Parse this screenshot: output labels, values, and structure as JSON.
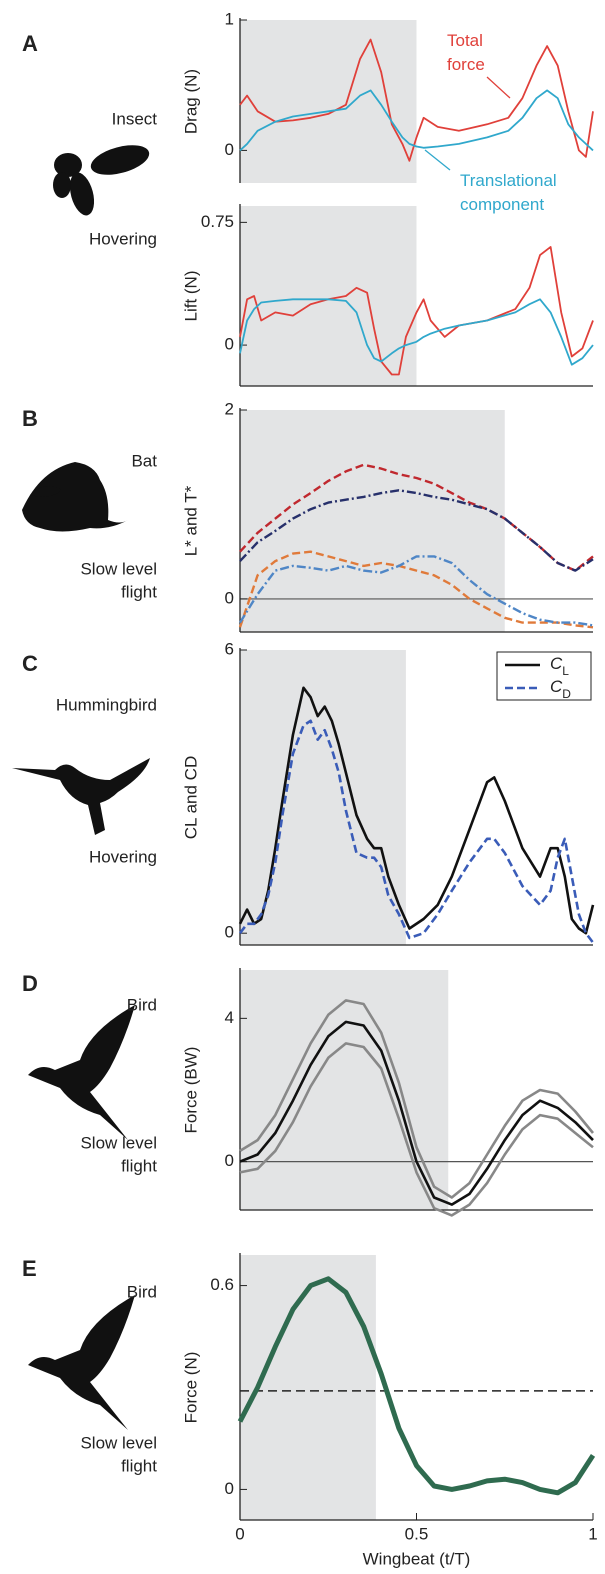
{
  "chart_data": [
    {
      "type": "line",
      "panel": "A",
      "animal": "Insect",
      "mode": [
        "Hovering"
      ],
      "ylabel": "Drag (N)",
      "xlim": [
        0,
        1
      ],
      "ylim": [
        -0.25,
        1
      ],
      "yticks": [
        0,
        1
      ],
      "shade": [
        0,
        0.5
      ],
      "x": [
        0,
        0.02,
        0.05,
        0.1,
        0.15,
        0.2,
        0.25,
        0.3,
        0.34,
        0.37,
        0.4,
        0.43,
        0.46,
        0.48,
        0.5,
        0.52,
        0.56,
        0.62,
        0.7,
        0.76,
        0.8,
        0.84,
        0.87,
        0.9,
        0.93,
        0.96,
        0.98,
        1
      ],
      "series": [
        {
          "name": "Total force",
          "color": "#e0403a",
          "style": "solid",
          "values": [
            0.35,
            0.42,
            0.3,
            0.22,
            0.23,
            0.25,
            0.28,
            0.35,
            0.7,
            0.85,
            0.6,
            0.2,
            0.05,
            -0.08,
            0.1,
            0.25,
            0.18,
            0.15,
            0.2,
            0.25,
            0.4,
            0.65,
            0.8,
            0.65,
            0.3,
            0.0,
            -0.05,
            0.3
          ]
        },
        {
          "name": "Translational component",
          "color": "#30a8cc",
          "style": "solid",
          "values": [
            0,
            0.05,
            0.15,
            0.22,
            0.26,
            0.28,
            0.3,
            0.32,
            0.42,
            0.46,
            0.35,
            0.22,
            0.1,
            0.05,
            0.03,
            0.02,
            0.03,
            0.05,
            0.1,
            0.15,
            0.25,
            0.4,
            0.46,
            0.4,
            0.2,
            0.1,
            0.05,
            0
          ]
        }
      ]
    },
    {
      "type": "line",
      "ylabel": "Lift (N)",
      "xlim": [
        0,
        1
      ],
      "ylim": [
        -0.25,
        0.85
      ],
      "yticks": [
        0,
        0.75
      ],
      "shade": [
        0,
        0.5
      ],
      "x": [
        0,
        0.02,
        0.04,
        0.06,
        0.1,
        0.15,
        0.2,
        0.25,
        0.3,
        0.33,
        0.36,
        0.38,
        0.4,
        0.43,
        0.45,
        0.47,
        0.5,
        0.52,
        0.54,
        0.58,
        0.62,
        0.7,
        0.78,
        0.82,
        0.85,
        0.88,
        0.91,
        0.94,
        0.97,
        1
      ],
      "series": [
        {
          "color": "#e0403a",
          "style": "solid",
          "values": [
            0.05,
            0.28,
            0.3,
            0.15,
            0.2,
            0.18,
            0.25,
            0.28,
            0.3,
            0.35,
            0.32,
            0.1,
            -0.1,
            -0.18,
            -0.18,
            0.05,
            0.2,
            0.28,
            0.15,
            0.05,
            0.12,
            0.15,
            0.22,
            0.35,
            0.55,
            0.6,
            0.2,
            -0.07,
            -0.02,
            0.15
          ]
        },
        {
          "color": "#30a8cc",
          "style": "solid",
          "values": [
            -0.05,
            0.15,
            0.22,
            0.26,
            0.27,
            0.28,
            0.28,
            0.28,
            0.27,
            0.2,
            0.0,
            -0.08,
            -0.1,
            -0.05,
            -0.02,
            0.0,
            0.02,
            0.05,
            0.07,
            0.1,
            0.12,
            0.15,
            0.2,
            0.25,
            0.28,
            0.2,
            0.05,
            -0.12,
            -0.08,
            0.0
          ]
        }
      ]
    },
    {
      "type": "line",
      "panel": "B",
      "animal": "Bat",
      "mode": [
        "Slow level",
        "flight"
      ],
      "ylabel": "L* and T*",
      "xlim": [
        0,
        1
      ],
      "ylim": [
        -0.35,
        2
      ],
      "yticks": [
        0,
        2
      ],
      "shade": [
        0,
        0.75
      ],
      "zero_line": true,
      "x": [
        0,
        0.05,
        0.1,
        0.15,
        0.2,
        0.25,
        0.3,
        0.35,
        0.4,
        0.45,
        0.5,
        0.55,
        0.6,
        0.65,
        0.7,
        0.75,
        0.8,
        0.85,
        0.9,
        0.95,
        1
      ],
      "series": [
        {
          "color": "#c0282e",
          "style": "dashed",
          "values": [
            0.5,
            0.7,
            0.85,
            1.0,
            1.12,
            1.25,
            1.35,
            1.42,
            1.38,
            1.32,
            1.28,
            1.22,
            1.12,
            1.02,
            0.95,
            0.85,
            0.7,
            0.55,
            0.38,
            0.3,
            0.45
          ]
        },
        {
          "color": "#27306b",
          "style": "dash-dot",
          "values": [
            0.4,
            0.6,
            0.72,
            0.85,
            0.95,
            1.02,
            1.05,
            1.08,
            1.12,
            1.15,
            1.12,
            1.08,
            1.05,
            1.0,
            0.95,
            0.85,
            0.7,
            0.55,
            0.38,
            0.3,
            0.42
          ]
        },
        {
          "color": "#e07a3a",
          "style": "dashed",
          "values": [
            -0.3,
            0.25,
            0.4,
            0.48,
            0.5,
            0.45,
            0.4,
            0.35,
            0.38,
            0.35,
            0.3,
            0.25,
            0.15,
            0.0,
            -0.1,
            -0.2,
            -0.25,
            -0.25,
            -0.25,
            -0.28,
            -0.3
          ]
        },
        {
          "color": "#4f86c6",
          "style": "dash-dot",
          "values": [
            -0.25,
            0.05,
            0.3,
            0.35,
            0.33,
            0.3,
            0.35,
            0.3,
            0.28,
            0.35,
            0.45,
            0.45,
            0.38,
            0.2,
            0.05,
            -0.05,
            -0.15,
            -0.22,
            -0.25,
            -0.25,
            -0.28
          ]
        }
      ]
    },
    {
      "type": "line",
      "panel": "C",
      "animal": "Hummingbird",
      "mode": [
        "Hovering"
      ],
      "ylabel": "CL and CD",
      "xlim": [
        0,
        1
      ],
      "ylim": [
        -0.25,
        6
      ],
      "yticks": [
        0,
        6
      ],
      "shade": [
        0,
        0.47
      ],
      "legend": "upper right",
      "x": [
        0,
        0.02,
        0.04,
        0.06,
        0.08,
        0.1,
        0.12,
        0.15,
        0.18,
        0.2,
        0.22,
        0.24,
        0.26,
        0.28,
        0.3,
        0.33,
        0.36,
        0.38,
        0.4,
        0.42,
        0.45,
        0.48,
        0.52,
        0.56,
        0.6,
        0.65,
        0.7,
        0.72,
        0.75,
        0.8,
        0.85,
        0.88,
        0.9,
        0.92,
        0.94,
        0.96,
        0.98,
        1
      ],
      "series": [
        {
          "name": "CL",
          "color": "#111111",
          "style": "solid",
          "values": [
            0.2,
            0.5,
            0.2,
            0.3,
            0.9,
            1.8,
            2.8,
            4.2,
            5.2,
            5.0,
            4.6,
            4.8,
            4.5,
            4.0,
            3.4,
            2.5,
            2.0,
            1.8,
            1.8,
            1.2,
            0.6,
            0.1,
            0.3,
            0.6,
            1.2,
            2.2,
            3.2,
            3.3,
            2.8,
            1.8,
            1.2,
            1.8,
            1.8,
            1.2,
            0.3,
            0.1,
            0.0,
            0.6
          ]
        },
        {
          "name": "CD",
          "color": "#3a5cb8",
          "style": "dashed",
          "values": [
            0,
            0.2,
            0.2,
            0.4,
            0.8,
            1.5,
            2.5,
            3.8,
            4.4,
            4.5,
            4.1,
            4.3,
            3.9,
            3.4,
            2.6,
            1.7,
            1.6,
            1.6,
            1.4,
            0.8,
            0.4,
            -0.1,
            0.0,
            0.4,
            0.9,
            1.5,
            2.0,
            2.0,
            1.7,
            1.0,
            0.6,
            0.9,
            1.6,
            2.0,
            1.2,
            0.4,
            0.0,
            -0.2
          ]
        }
      ]
    },
    {
      "type": "line",
      "panel": "D",
      "animal": "Bird",
      "mode": [
        "Slow level",
        "flight"
      ],
      "ylabel": "Force (BW)",
      "xlim": [
        0,
        1
      ],
      "ylim": [
        -1.35,
        5.35
      ],
      "yticks": [
        0,
        4
      ],
      "shade": [
        0,
        0.59
      ],
      "zero_line": true,
      "x": [
        0,
        0.05,
        0.1,
        0.15,
        0.2,
        0.25,
        0.3,
        0.35,
        0.4,
        0.45,
        0.5,
        0.55,
        0.6,
        0.65,
        0.7,
        0.75,
        0.8,
        0.85,
        0.9,
        0.95,
        1
      ],
      "series": [
        {
          "color": "#888888",
          "style": "solid",
          "values": [
            0.3,
            0.6,
            1.3,
            2.3,
            3.3,
            4.1,
            4.5,
            4.4,
            3.6,
            2.2,
            0.4,
            -0.7,
            -1.0,
            -0.6,
            0.2,
            1.0,
            1.7,
            2.0,
            1.9,
            1.4,
            0.8
          ]
        },
        {
          "color": "#888888",
          "style": "solid",
          "values": [
            -0.3,
            -0.2,
            0.3,
            1.1,
            2.1,
            2.9,
            3.3,
            3.2,
            2.6,
            1.2,
            -0.3,
            -1.3,
            -1.5,
            -1.2,
            -0.6,
            0.2,
            0.9,
            1.3,
            1.2,
            0.8,
            0.4
          ]
        },
        {
          "color": "#111111",
          "style": "solid",
          "values": [
            0.0,
            0.2,
            0.8,
            1.7,
            2.7,
            3.5,
            3.9,
            3.8,
            3.1,
            1.7,
            0.0,
            -1.0,
            -1.2,
            -0.9,
            -0.2,
            0.6,
            1.3,
            1.7,
            1.5,
            1.1,
            0.6
          ]
        }
      ]
    },
    {
      "type": "line",
      "panel": "E",
      "animal": "Bird",
      "mode": [
        "Slow level",
        "flight"
      ],
      "ylabel": "Force (N)",
      "xlabel": "Wingbeat (t/T)",
      "xlim": [
        0,
        1
      ],
      "xticks": [
        0,
        0.5,
        1
      ],
      "ylim": [
        -0.09,
        0.69
      ],
      "yticks": [
        0,
        0.6
      ],
      "shade": [
        0,
        0.385
      ],
      "hline": 0.29,
      "x": [
        0,
        0.05,
        0.1,
        0.15,
        0.2,
        0.25,
        0.3,
        0.35,
        0.4,
        0.45,
        0.5,
        0.55,
        0.6,
        0.65,
        0.7,
        0.75,
        0.8,
        0.85,
        0.9,
        0.95,
        1
      ],
      "series": [
        {
          "color": "#2f6b4f",
          "style": "solid",
          "values": [
            0.2,
            0.3,
            0.42,
            0.53,
            0.6,
            0.62,
            0.58,
            0.48,
            0.34,
            0.18,
            0.07,
            0.01,
            0.0,
            0.01,
            0.025,
            0.03,
            0.02,
            0.0,
            -0.01,
            0.02,
            0.1
          ]
        }
      ]
    }
  ]
}
